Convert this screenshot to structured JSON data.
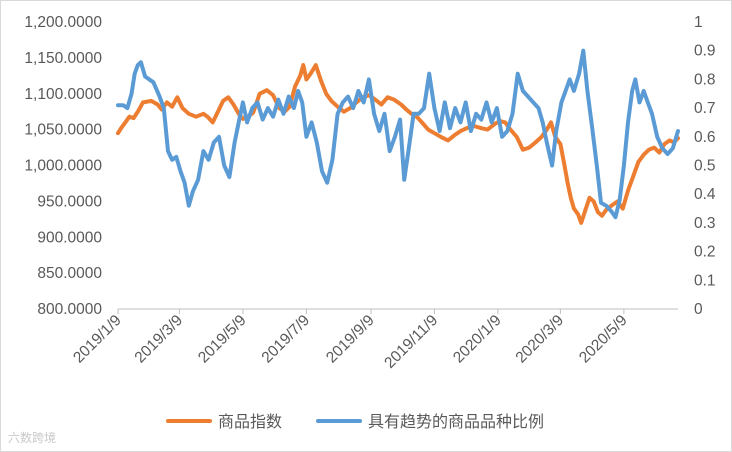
{
  "chart_data": {
    "type": "line",
    "title": "",
    "xlabel": "",
    "ylabel": "",
    "x_tick_labels": [
      "2019/1/9",
      "2019/3/9",
      "2019/5/9",
      "2019/7/9",
      "2019/9/9",
      "2019/11/9",
      "2020/1/9",
      "2020/3/9",
      "2020/5/9"
    ],
    "x_range": [
      "2019-01-09",
      "2020-06-30"
    ],
    "left_axis": {
      "range": [
        800,
        1200
      ],
      "tick_labels": [
        "800.0000",
        "850.0000",
        "900.0000",
        "950.0000",
        "1,000.0000",
        "1,050.0000",
        "1,100.0000",
        "1,150.0000",
        "1,200.0000"
      ]
    },
    "right_axis": {
      "range": [
        0,
        1
      ],
      "tick_labels": [
        "0",
        "0.1",
        "0.2",
        "0.3",
        "0.4",
        "0.5",
        "0.6",
        "0.7",
        "0.8",
        "0.9",
        "1"
      ]
    },
    "legend_position": "bottom",
    "grid": false,
    "series": [
      {
        "name": "商品指数",
        "axis": "left",
        "color": "#ED7D31",
        "points": [
          [
            "2019-01-09",
            1045
          ],
          [
            "2019-01-12",
            1052
          ],
          [
            "2019-01-16",
            1060
          ],
          [
            "2019-01-20",
            1068
          ],
          [
            "2019-01-24",
            1066
          ],
          [
            "2019-01-28",
            1075
          ],
          [
            "2019-02-02",
            1088
          ],
          [
            "2019-02-10",
            1090
          ],
          [
            "2019-02-16",
            1085
          ],
          [
            "2019-02-20",
            1078
          ],
          [
            "2019-02-25",
            1088
          ],
          [
            "2019-03-02",
            1082
          ],
          [
            "2019-03-07",
            1095
          ],
          [
            "2019-03-12",
            1080
          ],
          [
            "2019-03-18",
            1072
          ],
          [
            "2019-03-25",
            1068
          ],
          [
            "2019-04-01",
            1072
          ],
          [
            "2019-04-05",
            1068
          ],
          [
            "2019-04-10",
            1060
          ],
          [
            "2019-04-15",
            1075
          ],
          [
            "2019-04-20",
            1090
          ],
          [
            "2019-04-25",
            1095
          ],
          [
            "2019-04-30",
            1085
          ],
          [
            "2019-05-05",
            1072
          ],
          [
            "2019-05-09",
            1065
          ],
          [
            "2019-05-14",
            1068
          ],
          [
            "2019-05-19",
            1074
          ],
          [
            "2019-05-25",
            1100
          ],
          [
            "2019-06-01",
            1105
          ],
          [
            "2019-06-07",
            1098
          ],
          [
            "2019-06-13",
            1080
          ],
          [
            "2019-06-18",
            1075
          ],
          [
            "2019-06-23",
            1082
          ],
          [
            "2019-06-28",
            1110
          ],
          [
            "2019-07-03",
            1125
          ],
          [
            "2019-07-06",
            1140
          ],
          [
            "2019-07-09",
            1120
          ],
          [
            "2019-07-13",
            1128
          ],
          [
            "2019-07-18",
            1140
          ],
          [
            "2019-07-23",
            1118
          ],
          [
            "2019-07-28",
            1100
          ],
          [
            "2019-08-02",
            1090
          ],
          [
            "2019-08-08",
            1082
          ],
          [
            "2019-08-14",
            1075
          ],
          [
            "2019-08-20",
            1080
          ],
          [
            "2019-08-26",
            1088
          ],
          [
            "2019-09-01",
            1095
          ],
          [
            "2019-09-07",
            1098
          ],
          [
            "2019-09-13",
            1092
          ],
          [
            "2019-09-19",
            1085
          ],
          [
            "2019-09-25",
            1095
          ],
          [
            "2019-10-01",
            1092
          ],
          [
            "2019-10-08",
            1085
          ],
          [
            "2019-10-13",
            1078
          ],
          [
            "2019-10-18",
            1072
          ],
          [
            "2019-10-23",
            1068
          ],
          [
            "2019-10-28",
            1060
          ],
          [
            "2019-11-03",
            1050
          ],
          [
            "2019-11-09",
            1045
          ],
          [
            "2019-11-15",
            1040
          ],
          [
            "2019-11-22",
            1035
          ],
          [
            "2019-11-28",
            1042
          ],
          [
            "2019-12-04",
            1048
          ],
          [
            "2019-12-10",
            1052
          ],
          [
            "2019-12-17",
            1055
          ],
          [
            "2019-12-24",
            1052
          ],
          [
            "2019-12-30",
            1050
          ],
          [
            "2020-01-06",
            1058
          ],
          [
            "2020-01-11",
            1062
          ],
          [
            "2020-01-16",
            1060
          ],
          [
            "2020-01-21",
            1050
          ],
          [
            "2020-01-27",
            1040
          ],
          [
            "2020-02-02",
            1022
          ],
          [
            "2020-02-08",
            1025
          ],
          [
            "2020-02-14",
            1032
          ],
          [
            "2020-02-20",
            1040
          ],
          [
            "2020-02-25",
            1050
          ],
          [
            "2020-02-29",
            1060
          ],
          [
            "2020-03-04",
            1040
          ],
          [
            "2020-03-09",
            1030
          ],
          [
            "2020-03-13",
            1000
          ],
          [
            "2020-03-16",
            975
          ],
          [
            "2020-03-19",
            955
          ],
          [
            "2020-03-22",
            940
          ],
          [
            "2020-03-26",
            932
          ],
          [
            "2020-03-29",
            920
          ],
          [
            "2020-04-02",
            938
          ],
          [
            "2020-04-06",
            955
          ],
          [
            "2020-04-10",
            950
          ],
          [
            "2020-04-14",
            935
          ],
          [
            "2020-04-18",
            930
          ],
          [
            "2020-04-23",
            940
          ],
          [
            "2020-04-28",
            945
          ],
          [
            "2020-05-03",
            950
          ],
          [
            "2020-05-08",
            940
          ],
          [
            "2020-05-13",
            965
          ],
          [
            "2020-05-18",
            985
          ],
          [
            "2020-05-23",
            1005
          ],
          [
            "2020-05-28",
            1015
          ],
          [
            "2020-06-02",
            1022
          ],
          [
            "2020-06-07",
            1025
          ],
          [
            "2020-06-12",
            1018
          ],
          [
            "2020-06-17",
            1030
          ],
          [
            "2020-06-22",
            1035
          ],
          [
            "2020-06-26",
            1032
          ],
          [
            "2020-06-30",
            1038
          ]
        ]
      },
      {
        "name": "具有趋势的商品品种比例",
        "axis": "right",
        "color": "#5B9BD5",
        "points": [
          [
            "2019-01-09",
            0.71
          ],
          [
            "2019-01-14",
            0.71
          ],
          [
            "2019-01-18",
            0.7
          ],
          [
            "2019-01-22",
            0.75
          ],
          [
            "2019-01-25",
            0.82
          ],
          [
            "2019-01-28",
            0.85
          ],
          [
            "2019-01-31",
            0.86
          ],
          [
            "2019-02-04",
            0.81
          ],
          [
            "2019-02-12",
            0.79
          ],
          [
            "2019-02-18",
            0.74
          ],
          [
            "2019-02-22",
            0.7
          ],
          [
            "2019-02-26",
            0.55
          ],
          [
            "2019-03-02",
            0.52
          ],
          [
            "2019-03-06",
            0.53
          ],
          [
            "2019-03-10",
            0.48
          ],
          [
            "2019-03-14",
            0.44
          ],
          [
            "2019-03-18",
            0.36
          ],
          [
            "2019-03-22",
            0.41
          ],
          [
            "2019-03-27",
            0.45
          ],
          [
            "2019-04-01",
            0.55
          ],
          [
            "2019-04-06",
            0.52
          ],
          [
            "2019-04-11",
            0.58
          ],
          [
            "2019-04-16",
            0.6
          ],
          [
            "2019-04-21",
            0.5
          ],
          [
            "2019-04-26",
            0.46
          ],
          [
            "2019-05-01",
            0.58
          ],
          [
            "2019-05-05",
            0.65
          ],
          [
            "2019-05-09",
            0.72
          ],
          [
            "2019-05-13",
            0.65
          ],
          [
            "2019-05-18",
            0.7
          ],
          [
            "2019-05-23",
            0.72
          ],
          [
            "2019-05-28",
            0.66
          ],
          [
            "2019-06-02",
            0.7
          ],
          [
            "2019-06-07",
            0.67
          ],
          [
            "2019-06-12",
            0.73
          ],
          [
            "2019-06-17",
            0.68
          ],
          [
            "2019-06-22",
            0.74
          ],
          [
            "2019-06-27",
            0.7
          ],
          [
            "2019-07-01",
            0.76
          ],
          [
            "2019-07-05",
            0.72
          ],
          [
            "2019-07-09",
            0.6
          ],
          [
            "2019-07-14",
            0.65
          ],
          [
            "2019-07-19",
            0.58
          ],
          [
            "2019-07-24",
            0.48
          ],
          [
            "2019-07-29",
            0.44
          ],
          [
            "2019-08-03",
            0.52
          ],
          [
            "2019-08-08",
            0.68
          ],
          [
            "2019-08-13",
            0.72
          ],
          [
            "2019-08-18",
            0.74
          ],
          [
            "2019-08-23",
            0.7
          ],
          [
            "2019-08-28",
            0.76
          ],
          [
            "2019-09-02",
            0.72
          ],
          [
            "2019-09-07",
            0.8
          ],
          [
            "2019-09-12",
            0.68
          ],
          [
            "2019-09-17",
            0.62
          ],
          [
            "2019-09-22",
            0.68
          ],
          [
            "2019-09-27",
            0.55
          ],
          [
            "2019-10-02",
            0.6
          ],
          [
            "2019-10-07",
            0.66
          ],
          [
            "2019-10-11",
            0.45
          ],
          [
            "2019-10-15",
            0.55
          ],
          [
            "2019-10-20",
            0.68
          ],
          [
            "2019-10-25",
            0.68
          ],
          [
            "2019-10-30",
            0.7
          ],
          [
            "2019-11-04",
            0.82
          ],
          [
            "2019-11-09",
            0.7
          ],
          [
            "2019-11-14",
            0.62
          ],
          [
            "2019-11-19",
            0.72
          ],
          [
            "2019-11-24",
            0.63
          ],
          [
            "2019-11-29",
            0.7
          ],
          [
            "2019-12-04",
            0.65
          ],
          [
            "2019-12-09",
            0.72
          ],
          [
            "2019-12-14",
            0.62
          ],
          [
            "2019-12-19",
            0.68
          ],
          [
            "2019-12-24",
            0.66
          ],
          [
            "2019-12-29",
            0.72
          ],
          [
            "2020-01-03",
            0.65
          ],
          [
            "2020-01-08",
            0.7
          ],
          [
            "2020-01-13",
            0.6
          ],
          [
            "2020-01-18",
            0.62
          ],
          [
            "2020-01-23",
            0.68
          ],
          [
            "2020-01-28",
            0.82
          ],
          [
            "2020-02-02",
            0.76
          ],
          [
            "2020-02-07",
            0.74
          ],
          [
            "2020-02-12",
            0.72
          ],
          [
            "2020-02-17",
            0.7
          ],
          [
            "2020-02-21",
            0.65
          ],
          [
            "2020-02-25",
            0.58
          ],
          [
            "2020-03-01",
            0.5
          ],
          [
            "2020-03-05",
            0.62
          ],
          [
            "2020-03-10",
            0.72
          ],
          [
            "2020-03-14",
            0.76
          ],
          [
            "2020-03-18",
            0.8
          ],
          [
            "2020-03-22",
            0.76
          ],
          [
            "2020-03-27",
            0.82
          ],
          [
            "2020-03-31",
            0.9
          ],
          [
            "2020-04-04",
            0.76
          ],
          [
            "2020-04-09",
            0.62
          ],
          [
            "2020-04-13",
            0.5
          ],
          [
            "2020-04-17",
            0.37
          ],
          [
            "2020-04-22",
            0.36
          ],
          [
            "2020-04-27",
            0.34
          ],
          [
            "2020-05-01",
            0.32
          ],
          [
            "2020-05-05",
            0.38
          ],
          [
            "2020-05-09",
            0.5
          ],
          [
            "2020-05-13",
            0.65
          ],
          [
            "2020-05-17",
            0.76
          ],
          [
            "2020-05-20",
            0.8
          ],
          [
            "2020-05-24",
            0.72
          ],
          [
            "2020-05-28",
            0.76
          ],
          [
            "2020-06-01",
            0.72
          ],
          [
            "2020-06-05",
            0.68
          ],
          [
            "2020-06-10",
            0.6
          ],
          [
            "2020-06-15",
            0.56
          ],
          [
            "2020-06-20",
            0.54
          ],
          [
            "2020-06-25",
            0.56
          ],
          [
            "2020-06-30",
            0.62
          ]
        ]
      }
    ]
  },
  "watermark": "六数跨境"
}
